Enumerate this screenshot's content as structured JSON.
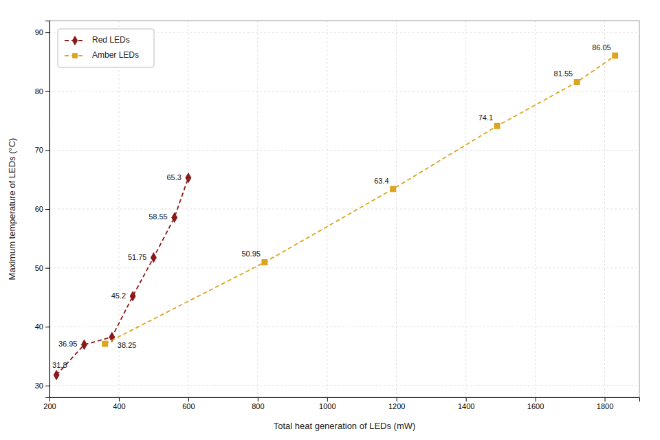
{
  "chart_data": {
    "type": "line",
    "xlabel": "Total heat generation of LEDs (mW)",
    "ylabel": "Maximum temperature of LEDs (°C)",
    "xlim": [
      200,
      1900
    ],
    "ylim": [
      28,
      92
    ],
    "xticks": [
      200,
      400,
      600,
      800,
      1000,
      1200,
      1400,
      1600,
      1800
    ],
    "yticks": [
      30,
      40,
      50,
      60,
      70,
      80,
      90
    ],
    "grid": true,
    "legend": "upper left",
    "data_labels": true,
    "series": [
      {
        "name": "Red LEDs",
        "color": "#8B1A1A",
        "marker": "diamond",
        "line_style": "dashed",
        "x": [
          220,
          300,
          380,
          440,
          500,
          560,
          600
        ],
        "values": [
          31.8,
          36.95,
          38.25,
          45.2,
          51.75,
          58.55,
          65.3
        ]
      },
      {
        "name": "Amber LEDs",
        "color": "#DAA520",
        "marker": "square",
        "line_style": "dashed",
        "x": [
          360,
          820,
          1190,
          1490,
          1720,
          1830
        ],
        "values": [
          37.1,
          50.95,
          63.4,
          74.1,
          81.55,
          86.05
        ],
        "value_labels": [
          null,
          "50.95",
          "63.4",
          "74.1",
          "81.55",
          "86.05"
        ]
      }
    ]
  }
}
